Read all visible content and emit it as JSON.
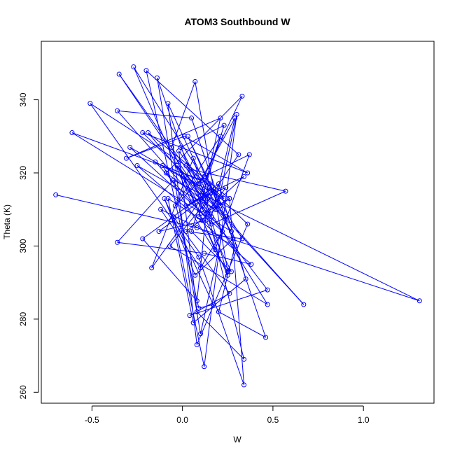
{
  "chart_data": {
    "type": "line",
    "title": "ATOM3 Southbound W",
    "xlabel": "W",
    "ylabel": "Theta (K)",
    "xlim": [
      -0.78,
      1.39
    ],
    "ylim": [
      257,
      356
    ],
    "x_ticks": [
      -0.5,
      0.0,
      0.5,
      1.0
    ],
    "y_ticks": [
      260,
      280,
      300,
      320,
      340
    ],
    "x_tick_labels": [
      "-0.5",
      "0.0",
      "0.5",
      "1.0"
    ],
    "y_tick_labels": [
      "260",
      "280",
      "300",
      "320",
      "340"
    ],
    "series_color": "#0000ff",
    "markers": "open-circle",
    "grid": false,
    "x": [
      -0.7,
      0.08,
      1.31,
      -0.05,
      -0.36,
      0.12,
      0.38,
      -0.25,
      0.18,
      -0.09,
      0.33,
      0.11,
      -0.61,
      0.27,
      0.04,
      0.57,
      0.16,
      -0.15,
      0.23,
      0.02,
      -0.51,
      0.09,
      0.34,
      0.26,
      -0.19,
      0.13,
      -0.07,
      0.47,
      0.06,
      -0.29,
      0.22,
      0.1,
      -0.12,
      0.29,
      0.2,
      0.46,
      0.05,
      -0.36,
      0.14,
      0.34,
      0.08,
      -0.02,
      0.24,
      0.1,
      -0.14,
      0.12,
      0.34,
      0.05,
      -0.27,
      0.21,
      0.03,
      0.28,
      0.07,
      -0.1,
      0.17,
      0.09,
      -0.2,
      0.31,
      0.11,
      0.0,
      0.25,
      0.06,
      -0.17,
      0.15,
      0.36,
      0.08,
      -0.08,
      0.19,
      0.3,
      0.12,
      -0.05,
      0.26,
      0.04,
      0.47,
      0.16,
      -0.03,
      0.67,
      0.13,
      -0.22,
      0.36,
      0.01,
      -0.31,
      0.21,
      0.09,
      0.26,
      0.02,
      0.33,
      0.15,
      -0.11,
      0.25,
      0.07,
      -0.06,
      0.18,
      0.37,
      0.12,
      -0.04,
      0.21,
      0.1,
      -0.35,
      0.14,
      0.08,
      -0.22,
      0.2,
      0.35,
      0.06,
      -0.08,
      0.11,
      0.24,
      0.02,
      0.17,
      -0.13,
      0.13,
      0.27,
      0.05,
      0.23,
      -0.01,
      0.09,
      0.29,
      0.16
    ],
    "y": [
      314,
      305,
      285,
      318,
      301,
      298,
      295,
      322,
      310,
      320,
      341,
      318,
      331,
      304,
      321,
      315,
      306,
      323,
      313,
      322,
      339,
      297,
      262,
      313,
      331,
      312,
      300,
      284,
      317,
      327,
      304,
      294,
      310,
      300,
      282,
      275,
      335,
      337,
      309,
      269,
      282,
      326,
      308,
      276,
      346,
      309,
      319,
      312,
      349,
      311,
      330,
      302,
      292,
      313,
      284,
      283,
      348,
      325,
      310,
      319,
      292,
      324,
      294,
      316,
      306,
      273,
      339,
      310,
      336,
      267,
      308,
      287,
      281,
      288,
      308,
      322,
      284,
      314,
      331,
      320,
      330,
      324,
      335,
      308,
      313,
      304,
      302,
      317,
      322,
      293,
      345,
      327,
      299,
      325,
      319,
      311,
      330,
      314,
      347,
      313,
      285,
      302,
      317,
      291,
      279,
      313,
      307,
      316,
      311,
      315,
      304,
      307,
      293,
      304,
      333,
      327,
      317,
      335,
      308
    ]
  }
}
